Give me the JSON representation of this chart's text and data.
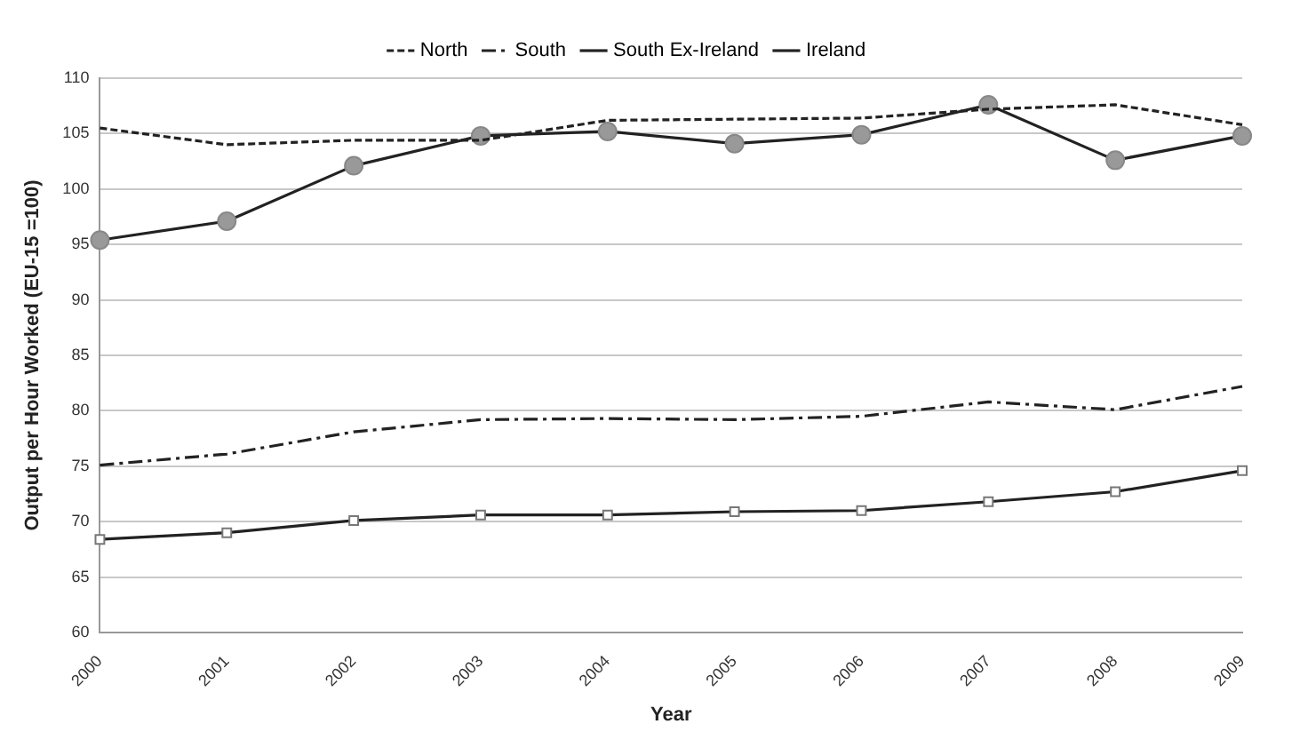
{
  "chart_data": {
    "type": "line",
    "xlabel": "Year",
    "ylabel": "Output per Hour Worked (EU-15 =100)",
    "categories": [
      "2000",
      "2001",
      "2002",
      "2003",
      "2004",
      "2005",
      "2006",
      "2007",
      "2008",
      "2009"
    ],
    "series": [
      {
        "name": "North",
        "color": "#222222",
        "line_style": "dotted",
        "marker": "none",
        "values": [
          105.5,
          104.0,
          104.4,
          104.4,
          106.2,
          106.3,
          106.4,
          107.2,
          107.6,
          105.8
        ]
      },
      {
        "name": "South",
        "color": "#222222",
        "line_style": "dashed",
        "marker": "none",
        "values": [
          75.1,
          76.1,
          78.1,
          79.2,
          79.3,
          79.2,
          79.5,
          80.8,
          80.1,
          82.2
        ]
      },
      {
        "name": "South Ex-Ireland",
        "color": "#222222",
        "line_style": "solid",
        "marker": "square",
        "values": [
          68.4,
          69.0,
          70.1,
          70.6,
          70.6,
          70.9,
          71.0,
          71.8,
          72.7,
          74.6
        ]
      },
      {
        "name": "Ireland",
        "color": "#222222",
        "line_style": "solid",
        "marker": "circle",
        "values": [
          95.4,
          97.1,
          102.1,
          104.8,
          105.2,
          104.1,
          104.9,
          107.6,
          102.6,
          104.8
        ]
      }
    ],
    "ylim": [
      60,
      110
    ],
    "yticks": [
      60,
      65,
      70,
      75,
      80,
      85,
      90,
      95,
      100,
      105,
      110
    ],
    "grid": "y",
    "legend": "top"
  }
}
